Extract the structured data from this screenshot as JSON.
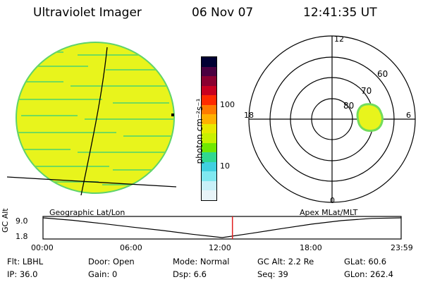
{
  "header": {
    "instrument": "Ultraviolet Imager",
    "date": "06 Nov 07",
    "time": "12:41:35 UT"
  },
  "colorbar": {
    "unit_label": "photon cm⁻²s⁻¹",
    "ticks": [
      "100",
      "10"
    ],
    "colors": [
      "#000033",
      "#4a0040",
      "#8a0030",
      "#c80020",
      "#ff2a00",
      "#ff7a00",
      "#ffb000",
      "#e8e800",
      "#c8f000",
      "#70e800",
      "#30d890",
      "#40d0e0",
      "#80e8f0",
      "#c8f0f8",
      "#e8f4f8"
    ]
  },
  "polar": {
    "mlt_labels": {
      "top": "12",
      "left": "18",
      "right": "6",
      "bottom": "0"
    },
    "lat_labels": [
      "60",
      "70",
      "80"
    ]
  },
  "timeline": {
    "axis_label": "GC Alt",
    "left_title": "Geographic Lat/Lon",
    "right_title": "Apex MLat/MLT",
    "y_ticks": [
      "9.0",
      "1.8"
    ],
    "x_ticks": [
      "00:00",
      "06:00",
      "12:00",
      "18:00",
      "23:59"
    ],
    "altitude_re": [
      [
        "00:00",
        9.0
      ],
      [
        "02:00",
        8.1
      ],
      [
        "04:00",
        6.9
      ],
      [
        "06:00",
        5.6
      ],
      [
        "08:00",
        4.4
      ],
      [
        "10:00",
        3.0
      ],
      [
        "12:00",
        1.8
      ],
      [
        "14:00",
        3.4
      ],
      [
        "16:00",
        5.1
      ],
      [
        "18:00",
        6.7
      ],
      [
        "20:00",
        8.0
      ],
      [
        "22:00",
        8.8
      ],
      [
        "23:59",
        9.0
      ]
    ],
    "current_time": "12:41"
  },
  "footer": {
    "flt": "Flt: LBHL",
    "door": "Door: Open",
    "mode": "Mode: Normal",
    "gc_alt": "GC Alt: 2.2 Re",
    "glat": "GLat:  60.6",
    "ip": "IP: 36.0",
    "gain": "Gain:  0",
    "dsp": "Dsp:     6.6",
    "seq": "Seq: 39",
    "glon": "GLon: 262.4"
  }
}
